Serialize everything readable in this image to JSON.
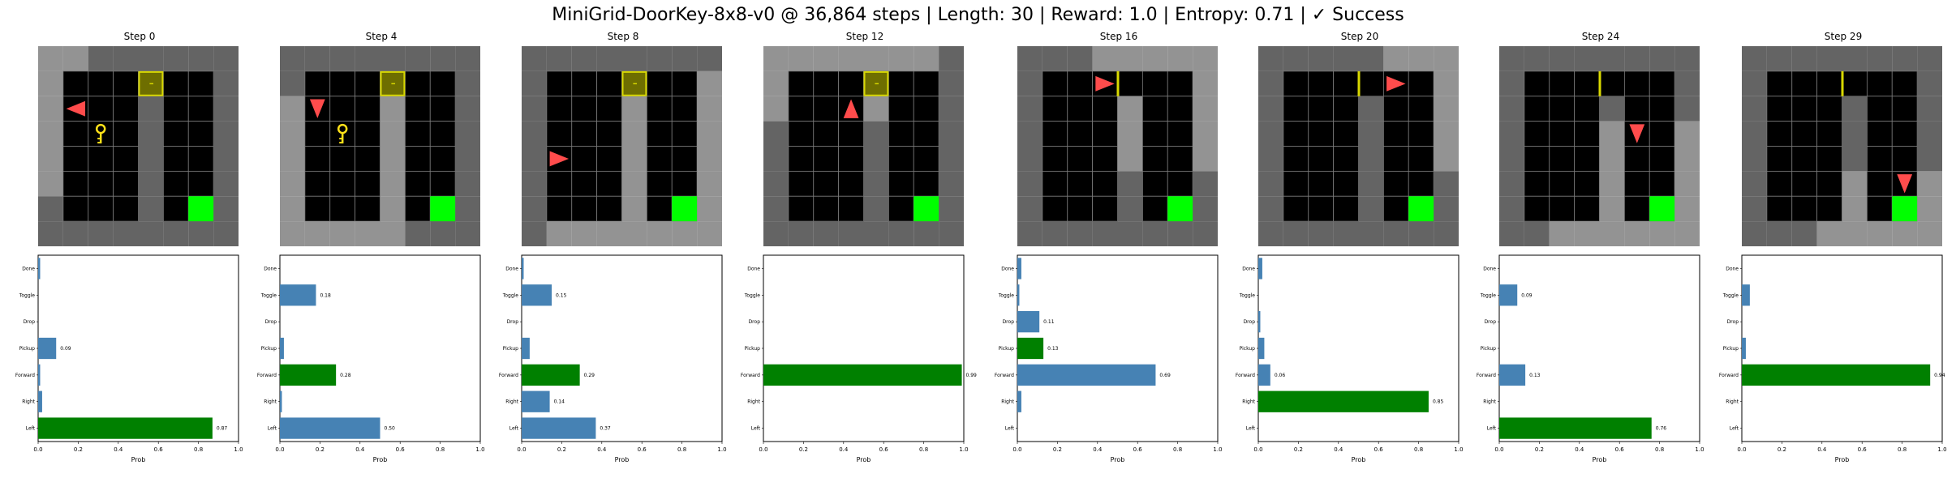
{
  "title": "MiniGrid-DoorKey-8x8-v0 @ 36,864 steps | Length: 30 | Reward: 1.0 | Entropy: 0.71 | ✓ Success",
  "colors": {
    "wall": "#646464",
    "floor_visible": "#000000",
    "wall_visible": "#939393",
    "floor_highlight": "#4d4d4d",
    "grid_line": "#7a7a7a",
    "goal": "#00ff00",
    "goal_highlight": "#4cff4c",
    "door": "#d8d800",
    "door_highlight": "#9a9a30",
    "key": "#ffe119",
    "agent": "#ff4c4c",
    "bar_chosen": "#008000",
    "bar_other": "#4682b4"
  },
  "chart_data": [
    {
      "type": "bar",
      "orientation": "horizontal",
      "title": "Step 0",
      "xlabel": "Prob",
      "ylabel": "",
      "categories": [
        "Left",
        "Right",
        "Forward",
        "Pickup",
        "Drop",
        "Toggle",
        "Done"
      ],
      "values": [
        0.87,
        0.02,
        0.01,
        0.09,
        0.0,
        0.0,
        0.01
      ],
      "labels": [
        "0.87",
        "",
        "",
        "0.09",
        "",
        "",
        ""
      ],
      "chosen": "Left",
      "xlim": [
        0,
        1.0
      ],
      "xticks": [
        "0.0",
        "0.2",
        "0.4",
        "0.6",
        "0.8",
        "1.0"
      ],
      "grid": {
        "agent": "left",
        "agent_row": 2,
        "agent_col": 1,
        "key": true,
        "door_open": false,
        "visible_rows": [
          0,
          1,
          2,
          3,
          4,
          5,
          6
        ],
        "visible_cols": [
          1,
          2,
          3,
          4
        ],
        "goal_highlight": false
      }
    },
    {
      "type": "bar",
      "orientation": "horizontal",
      "title": "Step 4",
      "xlabel": "Prob",
      "ylabel": "",
      "categories": [
        "Left",
        "Right",
        "Forward",
        "Pickup",
        "Drop",
        "Toggle",
        "Done"
      ],
      "values": [
        0.5,
        0.01,
        0.28,
        0.02,
        0.0,
        0.18,
        0.0
      ],
      "labels": [
        "0.50",
        "",
        "0.28",
        "",
        "",
        "0.18",
        ""
      ],
      "chosen": "Forward",
      "xlim": [
        0,
        1.0
      ],
      "xticks": [
        "0.0",
        "0.2",
        "0.4",
        "0.6",
        "0.8",
        "1.0"
      ],
      "grid": {
        "agent": "down",
        "agent_row": 2,
        "agent_col": 1,
        "key": true,
        "door_open": false
      }
    },
    {
      "type": "bar",
      "orientation": "horizontal",
      "title": "Step 8",
      "xlabel": "Prob",
      "ylabel": "",
      "categories": [
        "Left",
        "Right",
        "Forward",
        "Pickup",
        "Drop",
        "Toggle",
        "Done"
      ],
      "values": [
        0.37,
        0.14,
        0.29,
        0.04,
        0.0,
        0.15,
        0.01
      ],
      "labels": [
        "0.37",
        "0.14",
        "0.29",
        "",
        "",
        "0.15",
        ""
      ],
      "chosen": "Forward",
      "xlim": [
        0,
        1.0
      ],
      "xticks": [
        "0.0",
        "0.2",
        "0.4",
        "0.6",
        "0.8",
        "1.0"
      ],
      "grid": {
        "agent": "right",
        "agent_row": 4,
        "agent_col": 1,
        "key": false,
        "door_open": false
      }
    },
    {
      "type": "bar",
      "orientation": "horizontal",
      "title": "Step 12",
      "xlabel": "Prob",
      "ylabel": "",
      "categories": [
        "Left",
        "Right",
        "Forward",
        "Pickup",
        "Drop",
        "Toggle",
        "Done"
      ],
      "values": [
        0.0,
        0.0,
        0.99,
        0.0,
        0.0,
        0.0,
        0.0
      ],
      "labels": [
        "",
        "",
        "0.99",
        "",
        "",
        "",
        ""
      ],
      "chosen": "Forward",
      "xlim": [
        0,
        1.0
      ],
      "xticks": [
        "0.0",
        "0.2",
        "0.4",
        "0.6",
        "0.8",
        "1.0"
      ],
      "grid": {
        "agent": "up",
        "agent_row": 2,
        "agent_col": 3,
        "key": false,
        "door_open": false
      }
    },
    {
      "type": "bar",
      "orientation": "horizontal",
      "title": "Step 16",
      "xlabel": "Prob",
      "ylabel": "",
      "categories": [
        "Left",
        "Right",
        "Forward",
        "Pickup",
        "Drop",
        "Toggle",
        "Done"
      ],
      "values": [
        0.0,
        0.02,
        0.69,
        0.13,
        0.11,
        0.01,
        0.02
      ],
      "labels": [
        "",
        "",
        "0.69",
        "0.13",
        "0.11",
        "",
        ""
      ],
      "chosen": "Pickup",
      "xlim": [
        0,
        1.0
      ],
      "xticks": [
        "0.0",
        "0.2",
        "0.4",
        "0.6",
        "0.8",
        "1.0"
      ],
      "grid": {
        "agent": "right",
        "agent_row": 1,
        "agent_col": 3,
        "key": false,
        "door_open": true
      }
    },
    {
      "type": "bar",
      "orientation": "horizontal",
      "title": "Step 20",
      "xlabel": "Prob",
      "ylabel": "",
      "categories": [
        "Left",
        "Right",
        "Forward",
        "Pickup",
        "Drop",
        "Toggle",
        "Done"
      ],
      "values": [
        0.0,
        0.85,
        0.06,
        0.03,
        0.01,
        0.0,
        0.02
      ],
      "labels": [
        "",
        "0.85",
        "0.06",
        "",
        "",
        "",
        ""
      ],
      "chosen": "Right",
      "xlim": [
        0,
        1.0
      ],
      "xticks": [
        "0.0",
        "0.2",
        "0.4",
        "0.6",
        "0.8",
        "1.0"
      ],
      "grid": {
        "agent": "right",
        "agent_row": 1,
        "agent_col": 5,
        "key": false,
        "door_open": true
      }
    },
    {
      "type": "bar",
      "orientation": "horizontal",
      "title": "Step 24",
      "xlabel": "Prob",
      "ylabel": "",
      "categories": [
        "Left",
        "Right",
        "Forward",
        "Pickup",
        "Drop",
        "Toggle",
        "Done"
      ],
      "values": [
        0.76,
        0.0,
        0.13,
        0.0,
        0.0,
        0.09,
        0.0
      ],
      "labels": [
        "0.76",
        "",
        "0.13",
        "",
        "",
        "0.09",
        ""
      ],
      "chosen": "Left",
      "xlim": [
        0,
        1.0
      ],
      "xticks": [
        "0.0",
        "0.2",
        "0.4",
        "0.6",
        "0.8",
        "1.0"
      ],
      "grid": {
        "agent": "down",
        "agent_row": 3,
        "agent_col": 5,
        "key": false,
        "door_open": true
      }
    },
    {
      "type": "bar",
      "orientation": "horizontal",
      "title": "Step 29",
      "xlabel": "Prob",
      "ylabel": "",
      "categories": [
        "Left",
        "Right",
        "Forward",
        "Pickup",
        "Drop",
        "Toggle",
        "Done"
      ],
      "values": [
        0.0,
        0.0,
        0.94,
        0.02,
        0.0,
        0.04,
        0.0
      ],
      "labels": [
        "",
        "",
        "0.94",
        "",
        "",
        "",
        ""
      ],
      "chosen": "Forward",
      "xlim": [
        0,
        1.0
      ],
      "xticks": [
        "0.0",
        "0.2",
        "0.4",
        "0.6",
        "0.8",
        "1.0"
      ],
      "grid": {
        "agent": "down",
        "agent_row": 5,
        "agent_col": 6,
        "key": false,
        "door_open": true
      }
    }
  ]
}
